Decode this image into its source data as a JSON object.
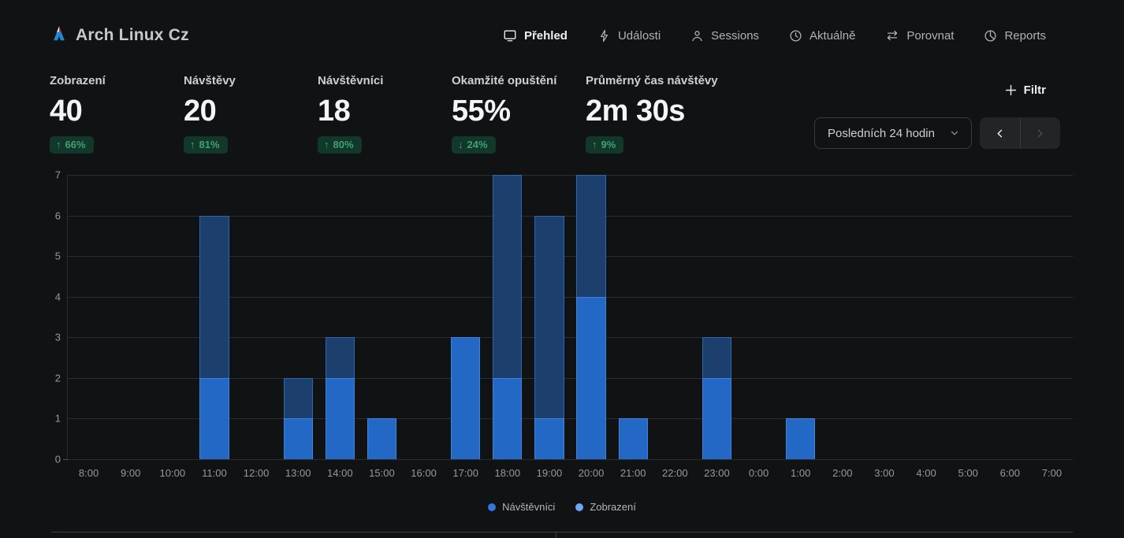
{
  "header": {
    "site_name": "Arch Linux Cz",
    "nav": [
      {
        "label": "Přehled",
        "icon": "monitor-icon",
        "active": true
      },
      {
        "label": "Události",
        "icon": "lightning-icon",
        "active": false
      },
      {
        "label": "Sessions",
        "icon": "user-icon",
        "active": false
      },
      {
        "label": "Aktuálně",
        "icon": "clock-icon",
        "active": false
      },
      {
        "label": "Porovnat",
        "icon": "compare-arrows-icon",
        "active": false
      },
      {
        "label": "Reports",
        "icon": "pie-chart-icon",
        "active": false
      }
    ]
  },
  "metrics": [
    {
      "label": "Zobrazení",
      "value": "40",
      "change": "66%",
      "direction": "up"
    },
    {
      "label": "Návštěvy",
      "value": "20",
      "change": "81%",
      "direction": "up"
    },
    {
      "label": "Návštěvníci",
      "value": "18",
      "change": "80%",
      "direction": "up"
    },
    {
      "label": "Okamžité opuštění",
      "value": "55%",
      "change": "24%",
      "direction": "down"
    },
    {
      "label": "Průměrný čas návštěvy",
      "value": "2m 30s",
      "change": "9%",
      "direction": "up"
    }
  ],
  "controls": {
    "filter_label": "Filtr",
    "date_range": "Posledních 24 hodin",
    "prev_enabled": true,
    "next_enabled": false
  },
  "colors": {
    "views_bar": "#1d3f6e",
    "visitors_bar": "#2368c4",
    "badge_bg": "#11382a",
    "badge_text": "#41a173",
    "accent_blue": "#2368c4"
  },
  "chart_data": {
    "type": "bar",
    "overlay": true,
    "title": "",
    "xlabel": "",
    "ylabel": "",
    "categories": [
      "8:00",
      "9:00",
      "10:00",
      "11:00",
      "12:00",
      "13:00",
      "14:00",
      "15:00",
      "16:00",
      "17:00",
      "18:00",
      "19:00",
      "20:00",
      "21:00",
      "22:00",
      "23:00",
      "0:00",
      "1:00",
      "2:00",
      "3:00",
      "4:00",
      "5:00",
      "6:00",
      "7:00"
    ],
    "series": [
      {
        "name": "Zobrazení",
        "color": "#1d3f6e",
        "values": [
          0,
          0,
          0,
          6,
          0,
          2,
          3,
          1,
          0,
          3,
          7,
          6,
          7,
          1,
          0,
          3,
          0,
          1,
          0,
          0,
          0,
          0,
          0,
          0
        ]
      },
      {
        "name": "Návštěvníci",
        "color": "#2368c4",
        "values": [
          0,
          0,
          0,
          2,
          0,
          1,
          2,
          1,
          0,
          3,
          2,
          1,
          4,
          1,
          0,
          2,
          0,
          1,
          0,
          0,
          0,
          0,
          0,
          0
        ]
      }
    ],
    "ylim": [
      0,
      7
    ],
    "yticks": [
      0,
      1,
      2,
      3,
      4,
      5,
      6,
      7
    ],
    "grid": "horizontal",
    "legend_position": "bottom",
    "legend": [
      {
        "label": "Návštěvníci",
        "color": "#3575e0"
      },
      {
        "label": "Zobrazení",
        "color": "#6da6f2"
      }
    ]
  }
}
